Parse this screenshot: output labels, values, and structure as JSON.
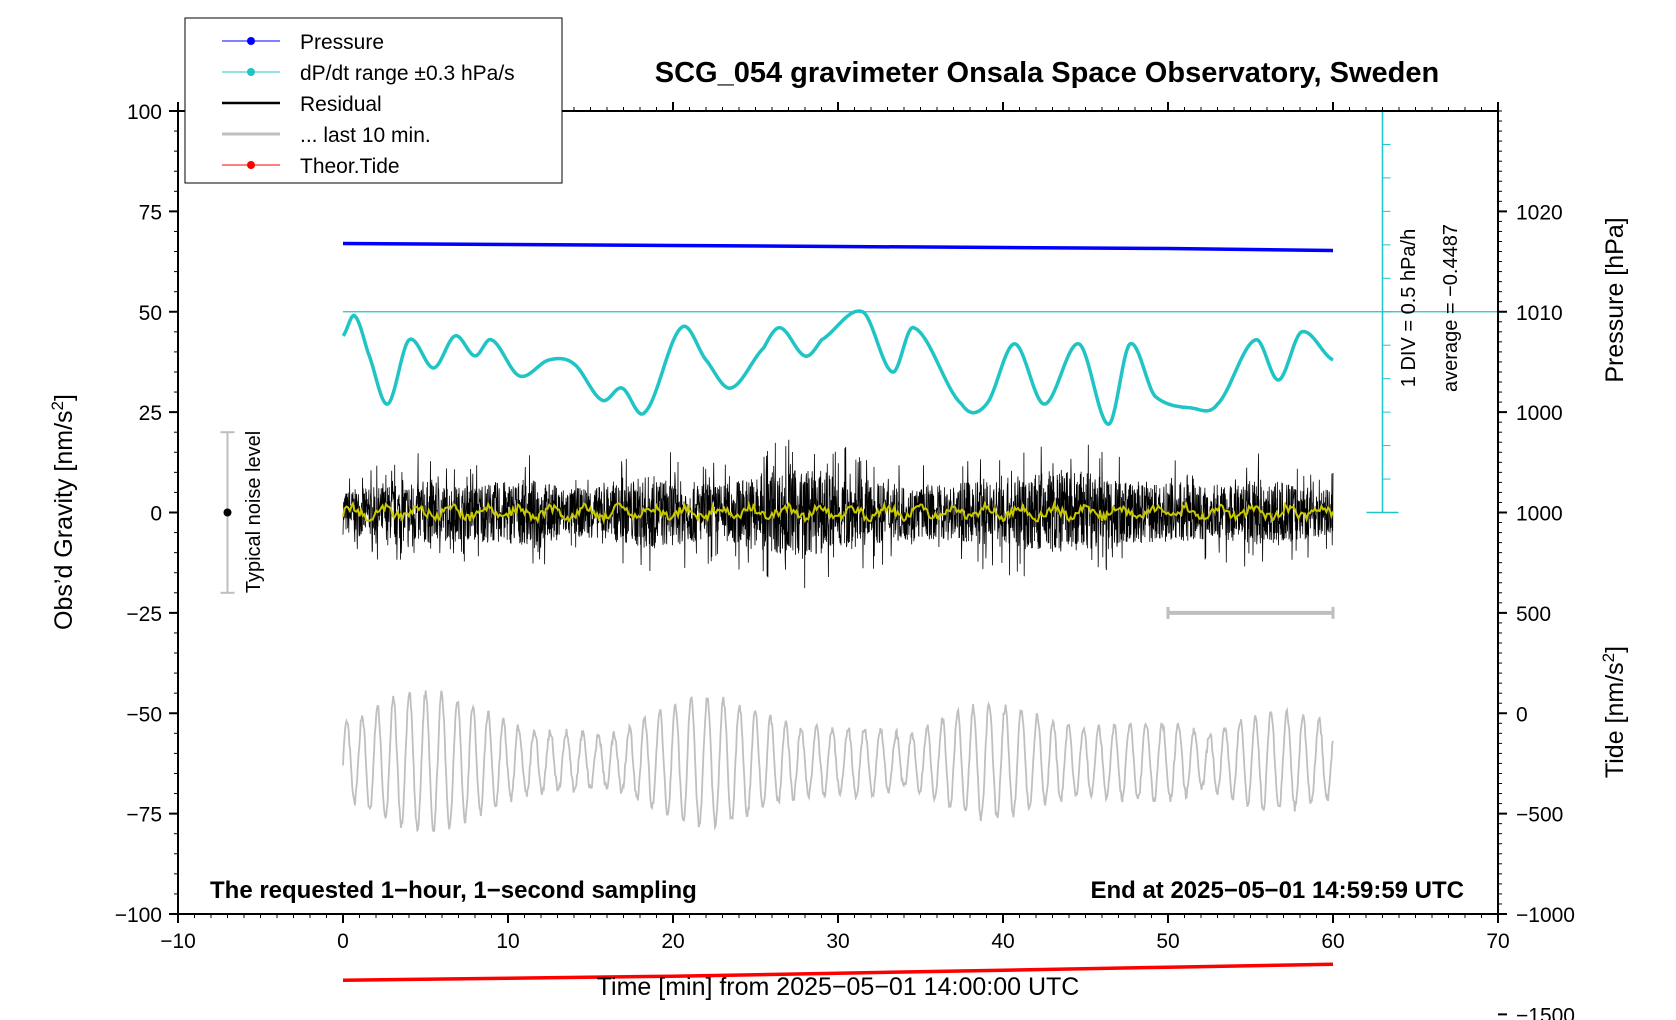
{
  "chart_data": {
    "type": "line",
    "title": "SCG_054 gravimeter Onsala Space Observatory, Sweden",
    "xlabel": "Time [min] from 2025−05−01 14:00:00 UTC",
    "ylabel_left": "Obs’d Gravity [nm/s",
    "ylabel_left_sup": "2",
    "ylabel_left_end": "]",
    "ylabel_right_top": "Pressure [hPa]",
    "ylabel_right_bottom": "Tide [nm/s",
    "ylabel_right_bottom_sup": "2",
    "ylabel_right_bottom_end": "]",
    "xlim": [
      -10,
      70
    ],
    "ylim": [
      -100,
      100
    ],
    "x_ticks": [
      -10,
      0,
      10,
      20,
      30,
      40,
      50,
      60,
      70
    ],
    "x_tick_labels": [
      "−10",
      "0",
      "10",
      "20",
      "30",
      "40",
      "50",
      "60",
      "70"
    ],
    "y_ticks": [
      -100,
      -75,
      -50,
      -25,
      0,
      25,
      50,
      75,
      100
    ],
    "y_tick_labels": [
      "−100",
      "−75",
      "−50",
      "−25",
      "0",
      "25",
      "50",
      "75",
      "100"
    ],
    "pressure_axis": {
      "tick_values": [
        1000,
        1010,
        1020
      ],
      "tick_labels": [
        "1000",
        "1010",
        "1020"
      ],
      "gravity_at_1000": 25,
      "gravity_per_hpa": 2.5
    },
    "tide_axis": {
      "tick_values": [
        -1500,
        -1000,
        -500,
        0,
        500,
        1000
      ],
      "tick_labels": [
        "−1500",
        "−1000",
        "−500",
        "0",
        "500",
        "1000"
      ],
      "gravity_at_zero": -50,
      "gravity_per_unit": 0.05
    },
    "series": [
      {
        "name": "Pressure",
        "color": "#0000ff",
        "x": [
          0,
          10,
          20,
          30,
          40,
          50,
          55,
          60
        ],
        "y": [
          1016.8,
          1016.7,
          1016.6,
          1016.5,
          1016.4,
          1016.3,
          1016.2,
          1016.1
        ]
      },
      {
        "name": "dP/dt range ±0.3 hPa/s",
        "color": "#20c4c4",
        "x": [
          0,
          0.7,
          1.5,
          2.7,
          4,
          5.5,
          6.8,
          8,
          9,
          10.7,
          12.5,
          14,
          15.7,
          16.9,
          18.3,
          20.5,
          22,
          23.5,
          25.5,
          26.5,
          28,
          29,
          31.5,
          33.3,
          34.6,
          37.5,
          39,
          40.7,
          42.5,
          44.6,
          46.4,
          47.7,
          49.2,
          51.5,
          53,
          55.3,
          56.7,
          58.1,
          60
        ],
        "y": [
          44,
          49,
          40,
          27,
          43,
          36,
          44,
          39,
          43,
          34,
          38,
          37,
          28,
          31,
          25,
          46,
          38,
          31,
          41,
          46,
          39,
          43,
          50,
          35,
          46,
          27,
          27,
          42,
          27,
          42,
          22,
          42,
          29,
          26,
          27,
          43,
          33,
          45,
          38
        ]
      },
      {
        "name": "Residual",
        "color": "#000000",
        "x_range": [
          0,
          60
        ],
        "envelope": [
          10,
          12,
          15,
          12,
          14,
          15,
          11,
          12,
          17,
          14,
          13,
          18,
          20,
          18,
          14,
          12,
          13,
          15,
          17,
          20,
          17,
          14,
          13,
          12,
          15,
          13,
          10
        ],
        "min": -20,
        "max": 22
      },
      {
        "name": "... last 10 min.",
        "color": "#bfbfbf",
        "x_range": [
          50,
          60
        ],
        "y": -25
      },
      {
        "name": "Theor.Tide",
        "color": "#ff0000",
        "x": [
          0,
          10,
          20,
          30,
          40,
          50,
          60
        ],
        "y": [
          -1330,
          -1320,
          -1310,
          -1295,
          -1280,
          -1265,
          -1250
        ]
      }
    ],
    "grey_gravity_trace": {
      "color": "#bfbfbf",
      "x_range": [
        0,
        60
      ],
      "center": -62,
      "amplitude_max": 18
    },
    "yellow_smooth_trace": {
      "color": "#c8c800"
    },
    "average_line": {
      "y": 50,
      "color": "#20c4c4"
    },
    "dpdt_scale_bar": {
      "x": 63,
      "y_from": 0,
      "y_to": 100,
      "color": "#20c4c4"
    },
    "noise_bar": {
      "x": -7,
      "y_from": -20,
      "y_to": 20,
      "center": 0
    }
  },
  "legend": {
    "items": [
      {
        "label": "Pressure",
        "color": "#0000ff",
        "marker": true
      },
      {
        "label": "dP/dt range ±0.3 hPa/s",
        "color": "#20c4c4",
        "marker": true
      },
      {
        "label": "Residual",
        "color": "#000000",
        "marker": false
      },
      {
        "label": "... last 10 min.",
        "color": "#bfbfbf",
        "marker": false
      },
      {
        "label": "Theor.Tide",
        "color": "#ff0000",
        "marker": true
      }
    ]
  },
  "annotations": {
    "noise": "Typical noise level",
    "div": "1 DIV = 0.5 hPa/h",
    "average": "average = −0.4487",
    "footer_left": "The requested 1−hour, 1−second sampling",
    "footer_right": "End at 2025−05−01 14:59:59 UTC"
  }
}
